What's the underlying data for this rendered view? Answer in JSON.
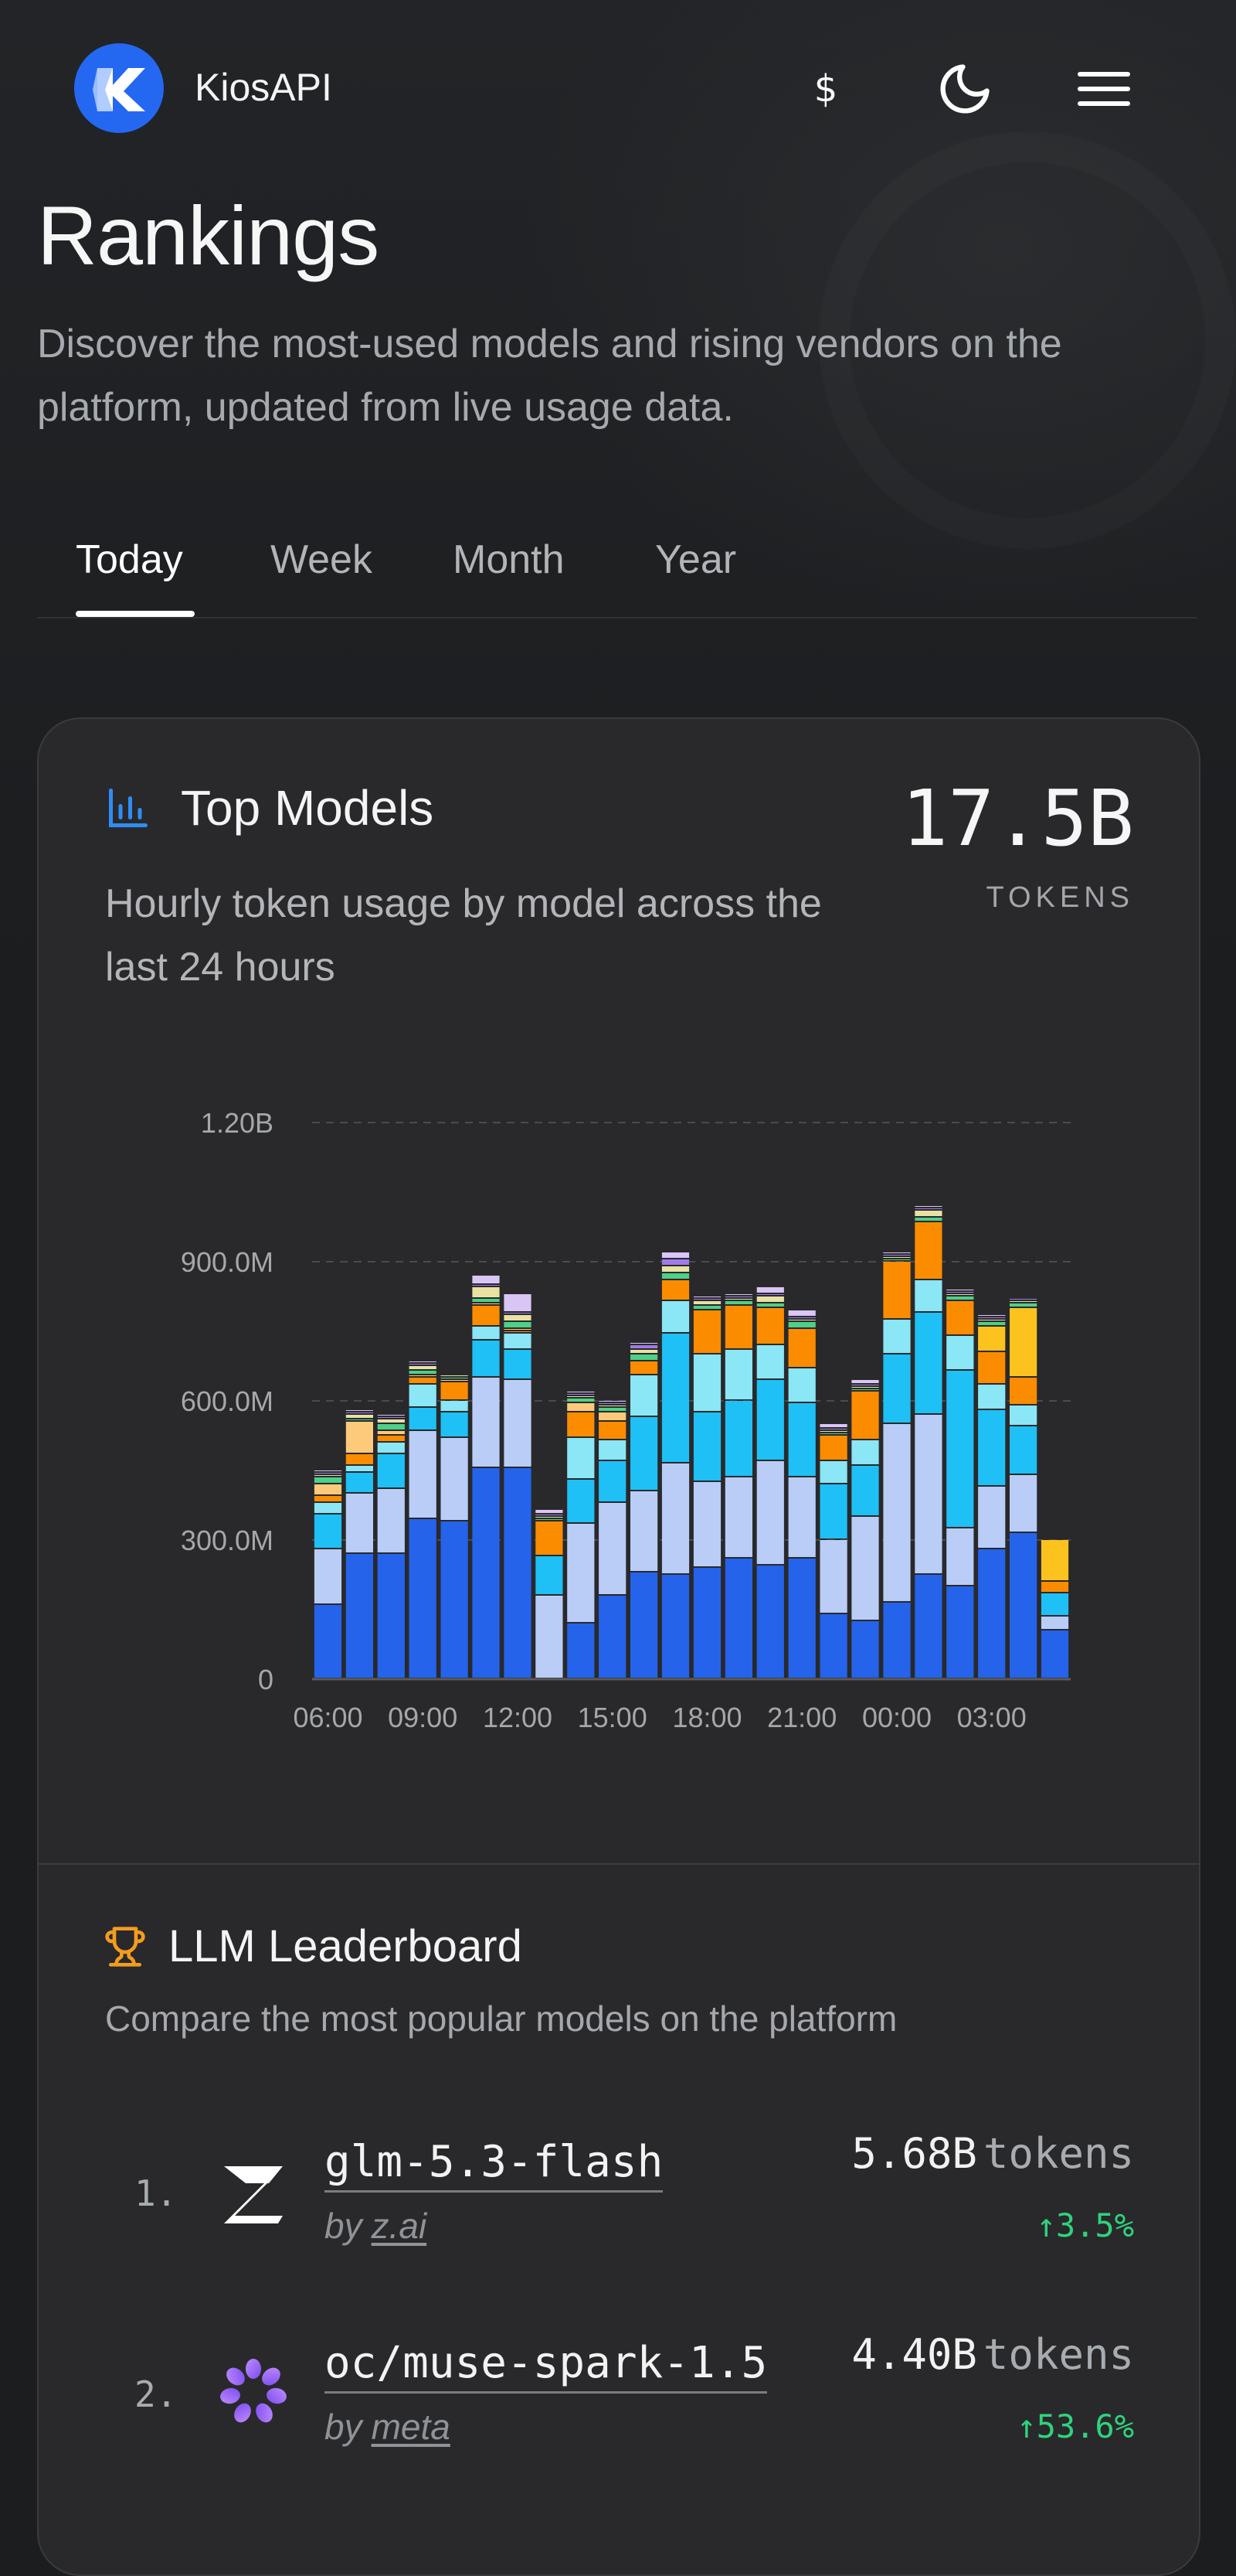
{
  "header": {
    "app_title": "KiosAPI",
    "currency_symbol": "$",
    "icons": {
      "logo": "kiosapi-logo-icon",
      "theme": "moon-icon",
      "menu": "hamburger-menu-icon"
    },
    "brand_color": "#2468f2"
  },
  "hero": {
    "title": "Rankings",
    "description": "Discover the most-used models and rising vendors on the platform, updated from live usage data."
  },
  "tabs": [
    {
      "label": "Today",
      "active": true
    },
    {
      "label": "Week",
      "active": false
    },
    {
      "label": "Month",
      "active": false
    },
    {
      "label": "Year",
      "active": false
    }
  ],
  "top_models": {
    "icon": "bar-chart-icon",
    "title": "Top Models",
    "subtitle": "Hourly token usage by model across the last 24 hours",
    "total_value": "17.5B",
    "total_unit": "TOKENS"
  },
  "chart_data": {
    "type": "bar",
    "stacked": true,
    "y_unit": "M",
    "ylim": [
      0,
      1200
    ],
    "yticks": [
      0,
      300,
      600,
      900,
      1200
    ],
    "ytick_labels": [
      "0",
      "300.0M",
      "600.0M",
      "900.0M",
      "1.20B"
    ],
    "categories": [
      "06:00",
      "07:00",
      "08:00",
      "09:00",
      "10:00",
      "11:00",
      "12:00",
      "13:00",
      "14:00",
      "15:00",
      "16:00",
      "17:00",
      "18:00",
      "19:00",
      "20:00",
      "21:00",
      "22:00",
      "23:00",
      "00:00",
      "01:00",
      "02:00",
      "03:00",
      "04:00",
      "05:00"
    ],
    "xtick_labels": [
      "06:00",
      "09:00",
      "12:00",
      "15:00",
      "18:00",
      "21:00",
      "00:00",
      "03:00"
    ],
    "xtick_indices": [
      0,
      3,
      6,
      9,
      12,
      15,
      18,
      21
    ],
    "grid": true,
    "legend": "none",
    "series": [
      {
        "color": "#2563eb",
        "values": [
          160,
          270,
          270,
          345,
          340,
          455,
          455,
          0,
          120,
          180,
          230,
          225,
          240,
          260,
          245,
          260,
          140,
          125,
          165,
          225,
          200,
          280,
          315,
          105
        ]
      },
      {
        "color": "#b9cdf7",
        "values": [
          120,
          130,
          140,
          190,
          180,
          195,
          190,
          180,
          215,
          200,
          175,
          240,
          185,
          175,
          225,
          175,
          160,
          225,
          385,
          345,
          125,
          135,
          125,
          30
        ]
      },
      {
        "color": "#1ec0f5",
        "values": [
          75,
          45,
          75,
          50,
          55,
          80,
          65,
          85,
          95,
          90,
          160,
          280,
          150,
          165,
          175,
          160,
          120,
          110,
          150,
          220,
          340,
          165,
          105,
          50
        ]
      },
      {
        "color": "#8be6f5",
        "values": [
          25,
          15,
          25,
          50,
          25,
          30,
          35,
          0,
          90,
          45,
          90,
          70,
          125,
          110,
          75,
          75,
          50,
          55,
          75,
          70,
          75,
          55,
          45,
          0
        ]
      },
      {
        "color": "#fb8c00",
        "values": [
          15,
          25,
          15,
          15,
          40,
          45,
          5,
          75,
          55,
          40,
          30,
          45,
          95,
          95,
          80,
          85,
          55,
          105,
          125,
          125,
          75,
          70,
          60,
          25
        ]
      },
      {
        "color": "#fdc97a",
        "values": [
          25,
          70,
          10,
          5,
          5,
          5,
          5,
          0,
          20,
          20,
          0,
          0,
          0,
          0,
          0,
          0,
          0,
          0,
          0,
          0,
          0,
          0,
          0,
          0
        ]
      },
      {
        "color": "#fcc31f",
        "values": [
          0,
          0,
          0,
          0,
          0,
          0,
          0,
          0,
          0,
          0,
          0,
          0,
          0,
          0,
          0,
          0,
          0,
          0,
          0,
          0,
          0,
          55,
          150,
          90
        ]
      },
      {
        "color": "#4cd08a",
        "values": [
          15,
          5,
          15,
          10,
          5,
          10,
          15,
          5,
          10,
          10,
          15,
          15,
          10,
          10,
          10,
          15,
          5,
          5,
          5,
          10,
          10,
          10,
          10,
          0
        ]
      },
      {
        "color": "#e8e1a2",
        "values": [
          5,
          10,
          10,
          10,
          5,
          25,
          15,
          5,
          5,
          5,
          10,
          15,
          10,
          5,
          15,
          5,
          5,
          5,
          5,
          15,
          5,
          5,
          5,
          0
        ]
      },
      {
        "color": "#9f7bea",
        "values": [
          5,
          5,
          5,
          5,
          0,
          5,
          5,
          5,
          5,
          5,
          10,
          15,
          5,
          5,
          5,
          5,
          5,
          5,
          5,
          5,
          5,
          5,
          5,
          0
        ]
      },
      {
        "color": "#d9c6f5",
        "values": [
          5,
          5,
          5,
          5,
          0,
          20,
          40,
          10,
          5,
          5,
          5,
          15,
          5,
          5,
          15,
          15,
          10,
          10,
          5,
          5,
          5,
          5,
          0,
          0
        ]
      }
    ]
  },
  "leaderboard": {
    "icon": "trophy-icon",
    "title": "LLM Leaderboard",
    "subtitle": "Compare the most popular models on the platform",
    "by_label": "by",
    "tokens_unit": "tokens",
    "rows": [
      {
        "rank": "1.",
        "name": "glm-5.3-flash",
        "vendor": "z.ai",
        "tokens": "5.68B",
        "change": "↑3.5%",
        "icon": "zai-logo-icon"
      },
      {
        "rank": "2.",
        "name": "oc/muse-spark-1.5",
        "vendor": "meta",
        "tokens": "4.40B",
        "change": "↑53.6%",
        "icon": "meta-flower-logo-icon"
      }
    ]
  }
}
